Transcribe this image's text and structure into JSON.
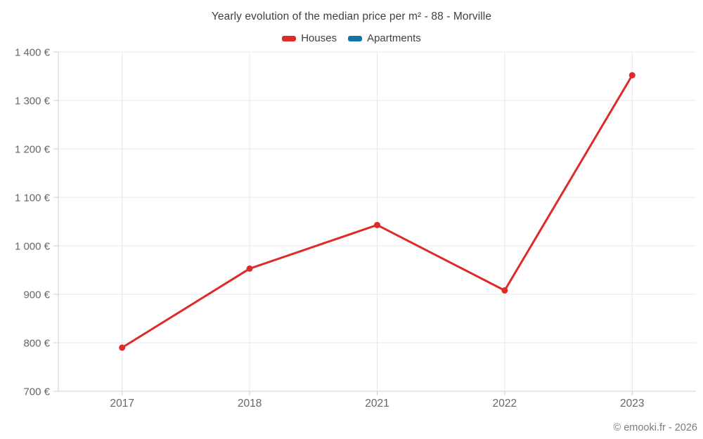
{
  "chart_data": {
    "type": "line",
    "title": "Yearly evolution of the median price per m² - 88 - Morville",
    "categories": [
      "2017",
      "2018",
      "2021",
      "2022",
      "2023"
    ],
    "series": [
      {
        "name": "Houses",
        "color": "#df2a2a",
        "values": [
          790,
          953,
          1043,
          908,
          1352
        ]
      },
      {
        "name": "Apartments",
        "color": "#1273a8",
        "values": []
      }
    ],
    "xlabel": "",
    "ylabel": "",
    "ylim": [
      700,
      1400
    ],
    "ytick_step": 100,
    "ytick_labels": [
      "700 €",
      "800 €",
      "900 €",
      "1 000 €",
      "1 100 €",
      "1 200 €",
      "1 300 €",
      "1 400 €"
    ],
    "currency_suffix": "€",
    "grid": true,
    "legend_position": "top",
    "footer": "© emooki.fr - 2026",
    "colors": {
      "grid": "#e8e8e8",
      "axis": "#cfcfcf",
      "tick_label": "#666666",
      "title_text": "#3f3f3f",
      "footer_text": "#7d7d7d",
      "background": "#ffffff"
    }
  }
}
